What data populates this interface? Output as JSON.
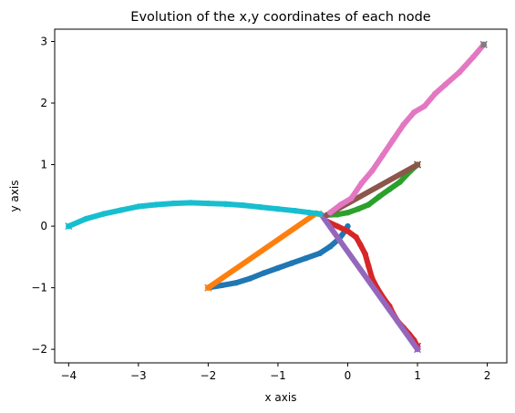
{
  "chart_data": {
    "type": "scatter",
    "title": "Evolution of the x,y coordinates of each node",
    "xlabel": "x axis",
    "ylabel": "y axis",
    "xlim": [
      -4.2,
      2.28
    ],
    "ylim": [
      -2.22,
      3.2
    ],
    "xticks": [
      -4,
      -3,
      -2,
      -1,
      0,
      1,
      2
    ],
    "yticks": [
      -2,
      -1,
      0,
      1,
      2,
      3
    ],
    "xtick_labels": [
      "−4",
      "−3",
      "−2",
      "−1",
      "0",
      "1",
      "2"
    ],
    "ytick_labels": [
      "−2",
      "−1",
      "0",
      "1",
      "2",
      "3"
    ],
    "grid": false,
    "legend": "none",
    "marker_end": "x",
    "series": [
      {
        "color": "#1f77b4",
        "points": [
          [
            -2.0,
            -1.0
          ],
          [
            -1.8,
            -0.96
          ],
          [
            -1.6,
            -0.92
          ],
          [
            -1.4,
            -0.85
          ],
          [
            -1.2,
            -0.76
          ],
          [
            -1.0,
            -0.68
          ],
          [
            -0.8,
            -0.6
          ],
          [
            -0.6,
            -0.52
          ],
          [
            -0.4,
            -0.44
          ],
          [
            -0.25,
            -0.33
          ],
          [
            -0.12,
            -0.2
          ],
          [
            -0.04,
            -0.08
          ],
          [
            0.0,
            0.0
          ]
        ]
      },
      {
        "color": "#ff7f0e",
        "points": [
          [
            -2.0,
            -1.0
          ],
          [
            -0.45,
            0.21
          ]
        ]
      },
      {
        "color": "#2ca02c",
        "points": [
          [
            1.0,
            1.0
          ],
          [
            0.9,
            0.9
          ],
          [
            0.75,
            0.72
          ],
          [
            0.6,
            0.6
          ],
          [
            0.45,
            0.48
          ],
          [
            0.3,
            0.35
          ],
          [
            0.15,
            0.28
          ],
          [
            0.0,
            0.22
          ],
          [
            -0.15,
            0.19
          ],
          [
            -0.3,
            0.18
          ]
        ]
      },
      {
        "color": "#d62728",
        "points": [
          [
            1.0,
            -1.95
          ],
          [
            0.95,
            -1.85
          ],
          [
            0.88,
            -1.75
          ],
          [
            0.8,
            -1.65
          ],
          [
            0.72,
            -1.55
          ],
          [
            0.65,
            -1.42
          ],
          [
            0.6,
            -1.3
          ],
          [
            0.52,
            -1.18
          ],
          [
            0.42,
            -1.0
          ],
          [
            0.35,
            -0.85
          ],
          [
            0.3,
            -0.65
          ],
          [
            0.25,
            -0.45
          ],
          [
            0.18,
            -0.3
          ],
          [
            0.12,
            -0.18
          ],
          [
            0.0,
            -0.08
          ],
          [
            -0.15,
            0.0
          ],
          [
            -0.3,
            0.08
          ]
        ]
      },
      {
        "color": "#9467bd",
        "points": [
          [
            1.0,
            -2.0
          ],
          [
            -0.38,
            0.19
          ]
        ]
      },
      {
        "color": "#8c564b",
        "points": [
          [
            1.0,
            1.0
          ],
          [
            -0.3,
            0.18
          ]
        ]
      },
      {
        "color": "#e377c2",
        "points": [
          [
            1.95,
            2.95
          ],
          [
            1.8,
            2.75
          ],
          [
            1.6,
            2.5
          ],
          [
            1.4,
            2.3
          ],
          [
            1.25,
            2.15
          ],
          [
            1.1,
            1.95
          ],
          [
            0.95,
            1.85
          ],
          [
            0.8,
            1.65
          ],
          [
            0.65,
            1.4
          ],
          [
            0.5,
            1.15
          ],
          [
            0.35,
            0.9
          ],
          [
            0.2,
            0.7
          ],
          [
            0.05,
            0.45
          ],
          [
            -0.1,
            0.35
          ],
          [
            -0.25,
            0.22
          ]
        ]
      },
      {
        "color": "#7f7f7f",
        "points": [
          [
            1.95,
            2.95
          ],
          [
            1.95,
            2.95
          ]
        ]
      },
      {
        "color": "#bcbd22",
        "points": [
          [
            -0.42,
            0.2
          ],
          [
            -0.42,
            0.2
          ]
        ]
      },
      {
        "color": "#17becf",
        "points": [
          [
            -4.0,
            0.0
          ],
          [
            -3.75,
            0.12
          ],
          [
            -3.5,
            0.2
          ],
          [
            -3.25,
            0.26
          ],
          [
            -3.0,
            0.32
          ],
          [
            -2.75,
            0.35
          ],
          [
            -2.5,
            0.37
          ],
          [
            -2.25,
            0.38
          ],
          [
            -2.0,
            0.37
          ],
          [
            -1.75,
            0.36
          ],
          [
            -1.5,
            0.34
          ],
          [
            -1.25,
            0.31
          ],
          [
            -1.0,
            0.28
          ],
          [
            -0.75,
            0.25
          ],
          [
            -0.55,
            0.22
          ],
          [
            -0.4,
            0.2
          ]
        ]
      }
    ]
  }
}
